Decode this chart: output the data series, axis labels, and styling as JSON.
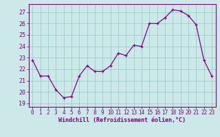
{
  "x": [
    0,
    1,
    2,
    3,
    4,
    5,
    6,
    7,
    8,
    9,
    10,
    11,
    12,
    13,
    14,
    15,
    16,
    17,
    18,
    19,
    20,
    21,
    22,
    23
  ],
  "y": [
    22.8,
    21.4,
    21.4,
    20.2,
    19.5,
    19.6,
    21.4,
    22.3,
    21.8,
    21.8,
    22.3,
    23.4,
    23.2,
    24.1,
    24.0,
    26.0,
    26.0,
    26.5,
    27.2,
    27.1,
    26.7,
    25.9,
    22.8,
    21.4
  ],
  "line_color": "#800080",
  "marker": "+",
  "bg_color": "#cce8e8",
  "grid_color": "#99cccc",
  "xlabel": "Windchill (Refroidissement éolien,°C)",
  "ylabel_ticks": [
    19,
    20,
    21,
    22,
    23,
    24,
    25,
    26,
    27
  ],
  "xlim": [
    -0.5,
    23.5
  ],
  "ylim": [
    18.7,
    27.7
  ],
  "xticks": [
    0,
    1,
    2,
    3,
    4,
    5,
    6,
    7,
    8,
    9,
    10,
    11,
    12,
    13,
    14,
    15,
    16,
    17,
    18,
    19,
    20,
    21,
    22,
    23
  ],
  "tick_color": "#800080",
  "label_color": "#800080",
  "axis_color": "#800080",
  "tick_fontsize": 5.5,
  "xlabel_fontsize": 6.0
}
